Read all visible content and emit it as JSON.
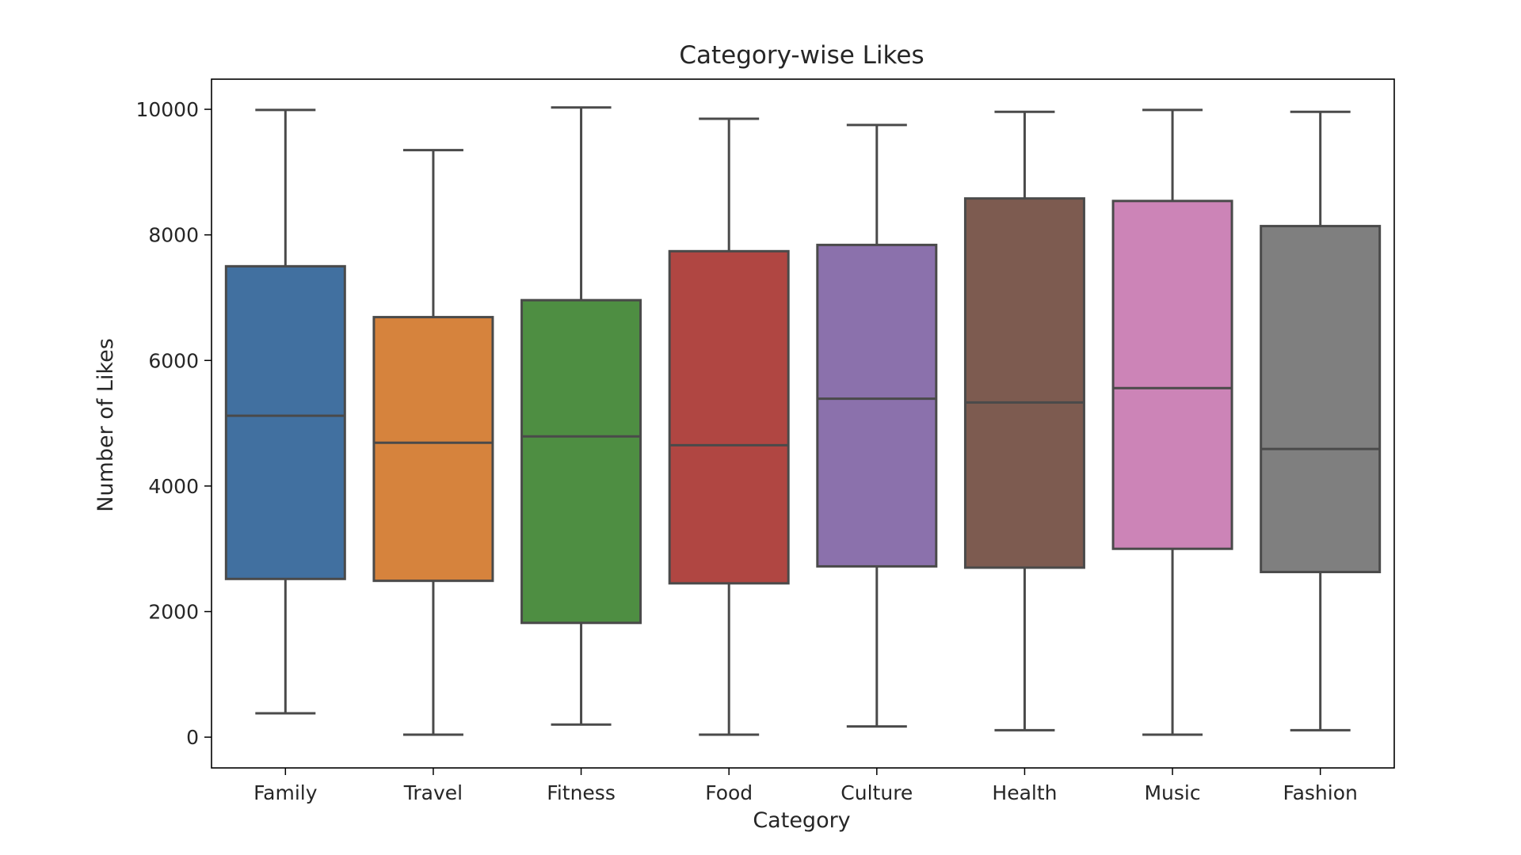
{
  "chart_data": {
    "type": "boxplot",
    "title": "Category-wise Likes",
    "xlabel": "Category",
    "ylabel": "Number of Likes",
    "ylim": [
      -490,
      10480
    ],
    "yticks": [
      0,
      2000,
      4000,
      6000,
      8000,
      10000
    ],
    "grid": false,
    "legend": "none",
    "categories": [
      "Family",
      "Travel",
      "Fitness",
      "Food",
      "Culture",
      "Health",
      "Music",
      "Fashion"
    ],
    "boxes": [
      {
        "category": "Family",
        "whisker_low": 380,
        "q1": 2520,
        "median": 5120,
        "q3": 7500,
        "whisker_high": 9990,
        "color": "#4170a0"
      },
      {
        "category": "Travel",
        "whisker_low": 40,
        "q1": 2490,
        "median": 4690,
        "q3": 6690,
        "whisker_high": 9350,
        "color": "#d6833d"
      },
      {
        "category": "Fitness",
        "whisker_low": 200,
        "q1": 1820,
        "median": 4790,
        "q3": 6960,
        "whisker_high": 10030,
        "color": "#4e8e42"
      },
      {
        "category": "Food",
        "whisker_low": 40,
        "q1": 2450,
        "median": 4650,
        "q3": 7740,
        "whisker_high": 9850,
        "color": "#b04642"
      },
      {
        "category": "Culture",
        "whisker_low": 170,
        "q1": 2720,
        "median": 5390,
        "q3": 7840,
        "whisker_high": 9750,
        "color": "#8b71ac"
      },
      {
        "category": "Health",
        "whisker_low": 110,
        "q1": 2700,
        "median": 5330,
        "q3": 8580,
        "whisker_high": 9960,
        "color": "#7d5b50"
      },
      {
        "category": "Music",
        "whisker_low": 40,
        "q1": 3000,
        "median": 5560,
        "q3": 8540,
        "whisker_high": 9990,
        "color": "#cc84b7"
      },
      {
        "category": "Fashion",
        "whisker_low": 110,
        "q1": 2630,
        "median": 4590,
        "q3": 8140,
        "whisker_high": 9960,
        "color": "#7f7f7f"
      }
    ],
    "line_color": "#4a4a4a"
  }
}
